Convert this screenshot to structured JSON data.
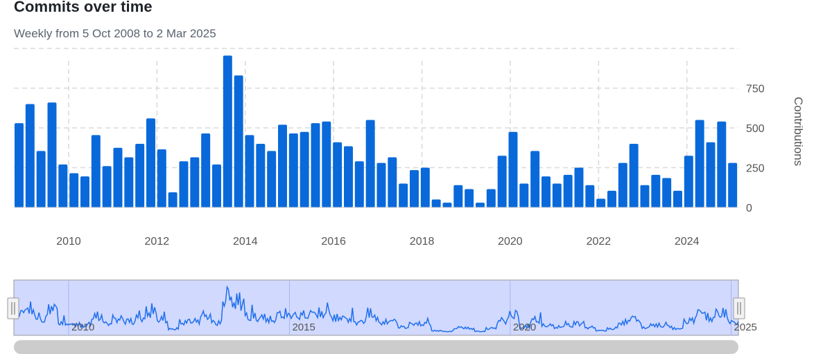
{
  "header": {
    "title": "Commits over time",
    "subtitle": "Weekly from 5 Oct 2008 to 2 Mar 2025"
  },
  "colors": {
    "bar": "#0969da",
    "grid": "#d9d9d9",
    "navigator_fill": "#d1d9ff",
    "navigator_line": "#1f6feb",
    "scrollbar": "#cccccc"
  },
  "chart_data": {
    "type": "bar",
    "title": "Commits over time",
    "subtitle": "Weekly from 5 Oct 2008 to 2 Mar 2025",
    "ylabel": "Contributions",
    "ylim": [
      0,
      1000
    ],
    "yticks": [
      0,
      250,
      500,
      750
    ],
    "xlim": [
      "2008-10-05",
      "2025-03-02"
    ],
    "xticks": [
      "2010",
      "2012",
      "2014",
      "2016",
      "2018",
      "2020",
      "2022",
      "2024"
    ],
    "grid": true,
    "legend": "none",
    "series": [
      {
        "values": [
          530,
          650,
          355,
          660,
          270,
          215,
          195,
          455,
          260,
          375,
          315,
          400,
          560,
          365,
          95,
          290,
          315,
          465,
          270,
          955,
          830,
          455,
          400,
          355,
          520,
          465,
          475,
          530,
          540,
          410,
          385,
          290,
          550,
          280,
          315,
          150,
          235,
          250,
          50,
          30,
          140,
          115,
          30,
          115,
          325,
          475,
          150,
          355,
          195,
          150,
          205,
          250,
          140,
          55,
          105,
          280,
          400,
          140,
          205,
          185,
          105,
          325,
          550,
          410,
          540,
          280
        ]
      }
    ]
  },
  "navigator": {
    "labels": [
      "2010",
      "2015",
      "2020",
      "2025"
    ],
    "range": [
      "2008-10-05",
      "2025-03-02"
    ]
  }
}
